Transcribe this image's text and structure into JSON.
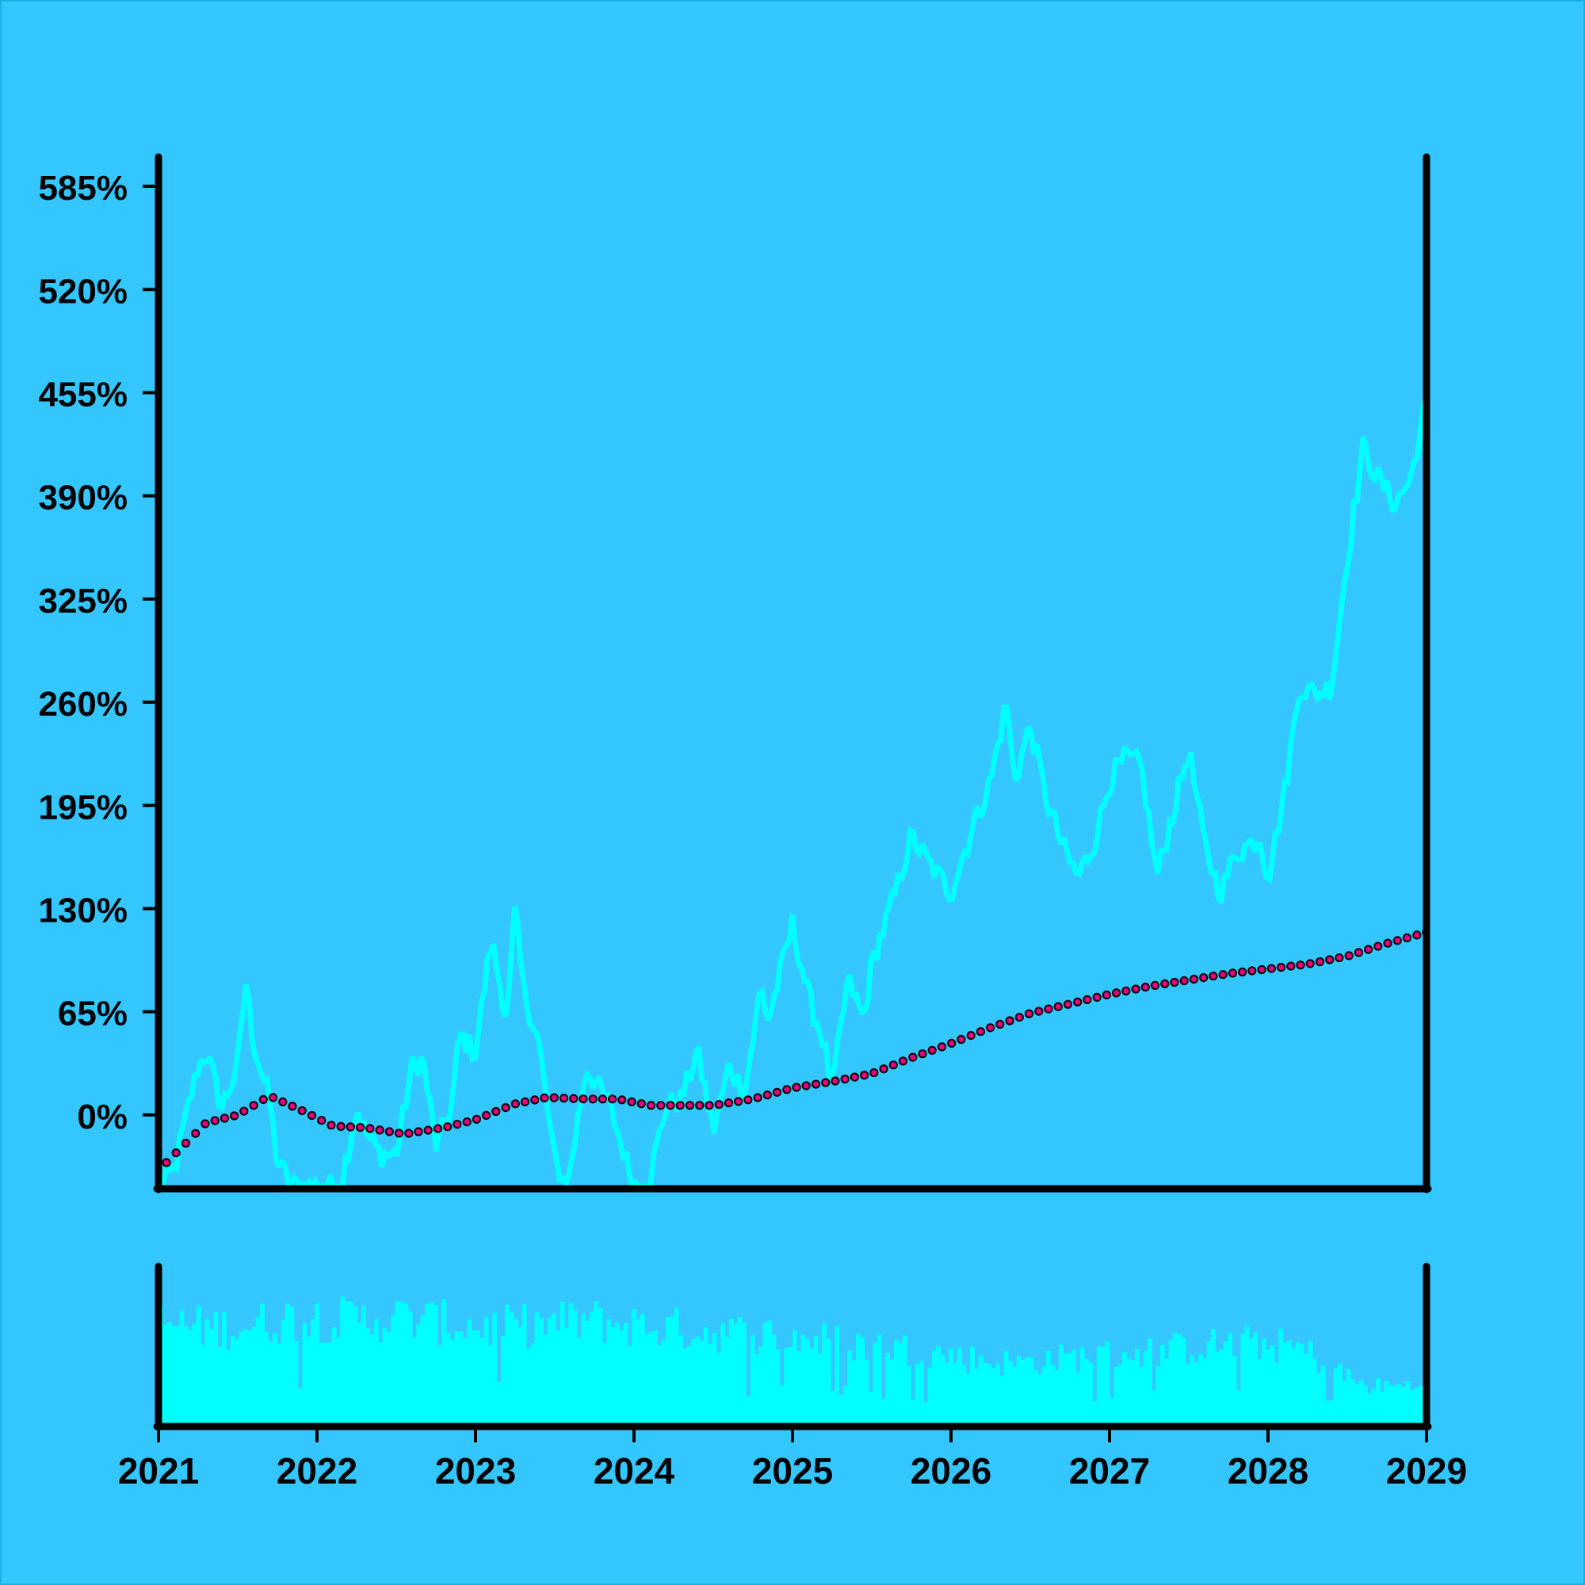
{
  "colors": {
    "background": "#33c6ff",
    "price_line": "#00ffff",
    "volume_bars": "#00ffff",
    "moving_average_fill": "#e6007e",
    "moving_average_stroke": "#000000",
    "axes": "#000000"
  },
  "chart_data": [
    {
      "type": "line",
      "title": "",
      "xlabel": "",
      "ylabel": "",
      "grid": false,
      "legend": "none",
      "x_unit": "year",
      "xlim": [
        2021.0,
        2029.0
      ],
      "ylim": [
        -45,
        605
      ],
      "yticks": [
        0,
        65,
        130,
        195,
        260,
        325,
        390,
        455,
        520,
        585
      ],
      "ytick_labels": [
        "0%",
        "65%",
        "130%",
        "195%",
        "260%",
        "325%",
        "390%",
        "455%",
        "520%",
        "585%"
      ],
      "series": [
        {
          "style": "line",
          "color": "#00ffff",
          "x": [
            2021.0,
            2021.1,
            2021.2,
            2021.25,
            2021.3,
            2021.4,
            2021.5,
            2021.55,
            2021.6,
            2021.7,
            2021.75,
            2021.85,
            2022.0,
            2022.15,
            2022.25,
            2022.3,
            2022.4,
            2022.5,
            2022.6,
            2022.67,
            2022.75,
            2022.85,
            2022.9,
            2023.0,
            2023.1,
            2023.2,
            2023.25,
            2023.3,
            2023.4,
            2023.5,
            2023.58,
            2023.7,
            2023.85,
            2024.0,
            2024.1,
            2024.2,
            2024.3,
            2024.4,
            2024.5,
            2024.6,
            2024.7,
            2024.8,
            2024.85,
            2024.95,
            2025.0,
            2025.1,
            2025.2,
            2025.25,
            2025.35,
            2025.45,
            2025.5,
            2025.65,
            2025.75,
            2025.85,
            2026.0,
            2026.15,
            2026.25,
            2026.35,
            2026.4,
            2026.5,
            2026.6,
            2026.7,
            2026.8,
            2026.9,
            2027.0,
            2027.1,
            2027.2,
            2027.3,
            2027.4,
            2027.5,
            2027.6,
            2027.7,
            2027.8,
            2027.95,
            2028.0,
            2028.1,
            2028.2,
            2028.3,
            2028.4,
            2028.5,
            2028.6,
            2028.7,
            2028.8,
            2028.9,
            2029.0
          ],
          "y": [
            -45,
            -35,
            10,
            30,
            40,
            5,
            30,
            85,
            45,
            10,
            -30,
            -45,
            -45,
            -45,
            5,
            -10,
            -25,
            -25,
            30,
            35,
            -20,
            5,
            50,
            40,
            110,
            60,
            130,
            80,
            45,
            -30,
            -45,
            30,
            5,
            -45,
            -40,
            5,
            10,
            40,
            -10,
            30,
            15,
            80,
            60,
            100,
            120,
            75,
            45,
            15,
            85,
            60,
            95,
            140,
            175,
            160,
            140,
            185,
            210,
            260,
            210,
            245,
            200,
            170,
            150,
            170,
            210,
            225,
            220,
            150,
            190,
            230,
            170,
            140,
            165,
            175,
            150,
            200,
            270,
            265,
            270,
            350,
            420,
            400,
            385,
            400,
            450
          ]
        },
        {
          "style": "dotted-markers",
          "color": "#e6007e",
          "x": [
            2021.05,
            2021.3,
            2021.5,
            2021.7,
            2021.9,
            2022.1,
            2022.3,
            2022.55,
            2022.8,
            2023.0,
            2023.25,
            2023.45,
            2023.7,
            2023.9,
            2024.1,
            2024.3,
            2024.5,
            2024.75,
            2025.0,
            2025.25,
            2025.5,
            2025.75,
            2026.0,
            2026.25,
            2026.5,
            2026.75,
            2027.0,
            2027.25,
            2027.5,
            2027.75,
            2028.0,
            2028.25,
            2028.5,
            2028.75,
            2029.0
          ],
          "y": [
            -30,
            -5,
            0,
            12,
            3,
            -7,
            -8,
            -12,
            -8,
            -3,
            7,
            11,
            10,
            10,
            6,
            6,
            6,
            10,
            17,
            21,
            26,
            36,
            45,
            55,
            64,
            70,
            76,
            81,
            85,
            89,
            92,
            95,
            100,
            108,
            115
          ]
        }
      ]
    },
    {
      "type": "bar",
      "title": "",
      "xlabel": "",
      "ylabel": "",
      "grid": false,
      "legend": "none",
      "xlim": [
        2021.0,
        2029.0
      ],
      "xticks": [
        2021,
        2022,
        2023,
        2024,
        2025,
        2026,
        2027,
        2028,
        2029
      ],
      "xtick_labels": [
        "2021",
        "2022",
        "2023",
        "2024",
        "2025",
        "2026",
        "2027",
        "2028",
        "2029"
      ],
      "ylim": [
        0,
        100
      ],
      "envelope": {
        "x": [
          2021.0,
          2021.3,
          2021.6,
          2021.9,
          2022.2,
          2022.5,
          2022.8,
          2023.1,
          2023.4,
          2023.7,
          2024.0,
          2024.3,
          2024.6,
          2024.9,
          2025.2,
          2025.5,
          2025.8,
          2026.1,
          2026.4,
          2026.7,
          2027.0,
          2027.3,
          2027.6,
          2027.9,
          2028.2,
          2028.4,
          2028.6,
          2028.8,
          2029.0
        ],
        "y": [
          80,
          76,
          78,
          85,
          82,
          84,
          80,
          76,
          78,
          82,
          78,
          75,
          72,
          70,
          66,
          62,
          58,
          52,
          48,
          52,
          55,
          58,
          62,
          64,
          60,
          45,
          30,
          30,
          30
        ]
      },
      "bar_count": 300
    }
  ]
}
